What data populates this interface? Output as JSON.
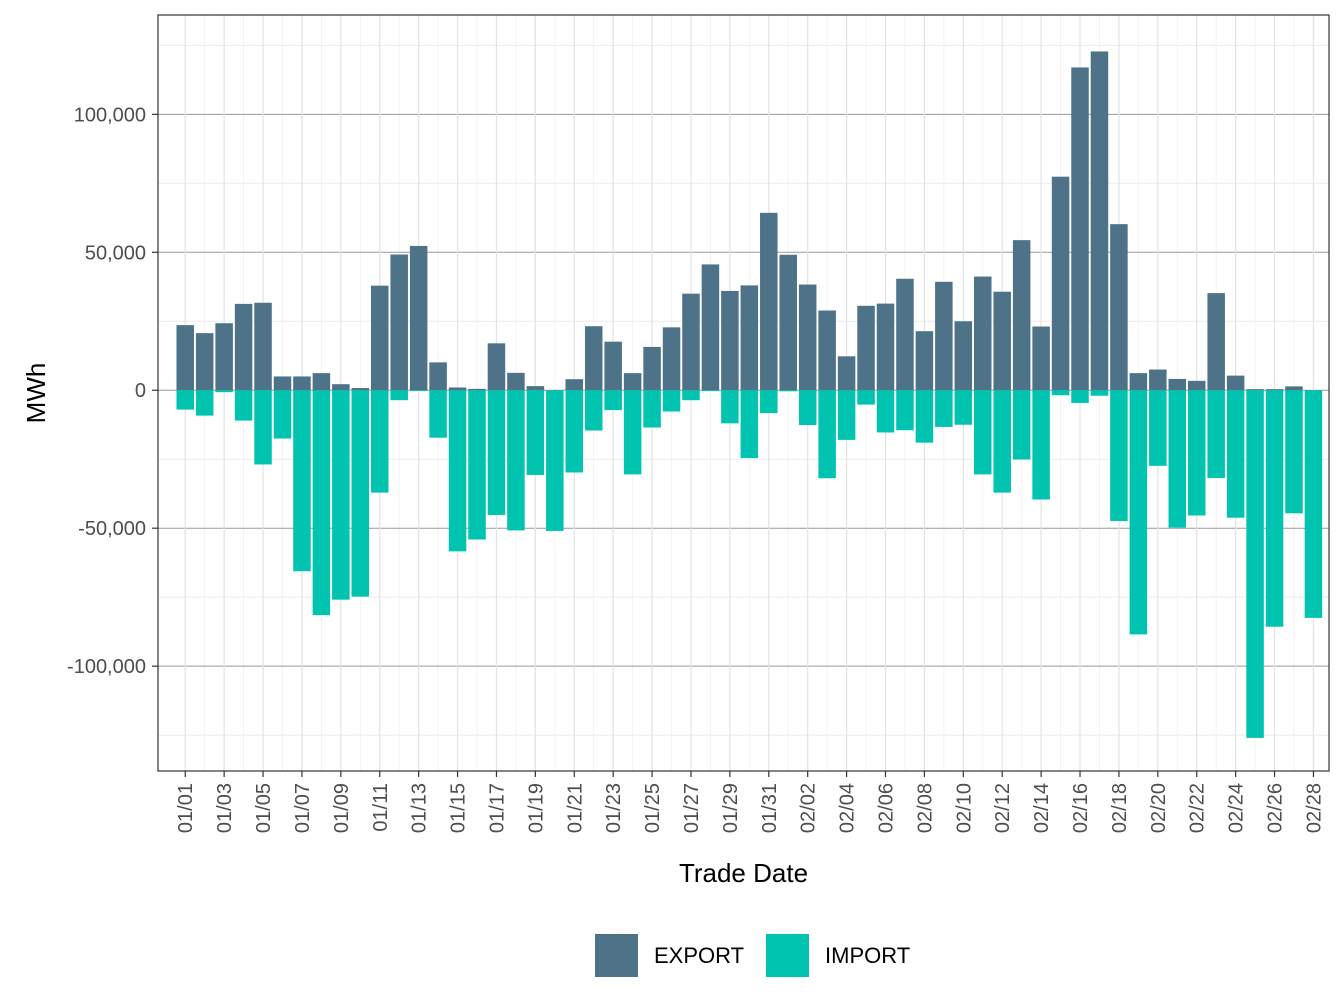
{
  "chart_data": {
    "type": "bar",
    "xlabel": "Trade Date",
    "ylabel": "MWh",
    "ylim": [
      -138000,
      136000
    ],
    "y_ticks": [
      100000,
      50000,
      0,
      -50000,
      -100000
    ],
    "y_tick_labels": [
      "100,000",
      "50,000",
      "0",
      "-50,000",
      "-100,000"
    ],
    "x_tick_labels": [
      "01/01",
      "01/03",
      "01/05",
      "01/07",
      "01/09",
      "01/11",
      "01/13",
      "01/15",
      "01/17",
      "01/19",
      "01/21",
      "01/23",
      "01/25",
      "01/27",
      "01/29",
      "01/31",
      "02/02",
      "02/04",
      "02/06",
      "02/08",
      "02/10",
      "02/12",
      "02/14",
      "02/16",
      "02/18",
      "02/20",
      "02/22",
      "02/24",
      "02/26",
      "02/28"
    ],
    "grid": true,
    "legend_position": "bottom",
    "categories": [
      "01/01",
      "01/02",
      "01/03",
      "01/04",
      "01/05",
      "01/06",
      "01/07",
      "01/08",
      "01/09",
      "01/10",
      "01/11",
      "01/12",
      "01/13",
      "01/14",
      "01/15",
      "01/16",
      "01/17",
      "01/18",
      "01/19",
      "01/20",
      "01/21",
      "01/22",
      "01/23",
      "01/24",
      "01/25",
      "01/26",
      "01/27",
      "01/28",
      "01/29",
      "01/30",
      "01/31",
      "02/01",
      "02/02",
      "02/03",
      "02/04",
      "02/05",
      "02/06",
      "02/07",
      "02/08",
      "02/09",
      "02/10",
      "02/11",
      "02/12",
      "02/13",
      "02/14",
      "02/15",
      "02/16",
      "02/17",
      "02/18",
      "02/19",
      "02/20",
      "02/21",
      "02/22",
      "02/23",
      "02/24",
      "02/25",
      "02/26",
      "02/27",
      "02/28"
    ],
    "series": [
      {
        "name": "EXPORT",
        "color": "#4e7389",
        "values": [
          23600,
          20700,
          24300,
          31300,
          31700,
          5000,
          5000,
          6200,
          2200,
          800,
          37900,
          49200,
          52300,
          10100,
          1000,
          500,
          17000,
          6300,
          1500,
          0,
          4000,
          23200,
          17600,
          6200,
          15700,
          22800,
          35000,
          45600,
          36000,
          38000,
          64300,
          49100,
          38300,
          28900,
          12300,
          30600,
          31400,
          40400,
          21400,
          39300,
          25000,
          41200,
          35700,
          54400,
          23100,
          77400,
          117000,
          122800,
          60200,
          6200,
          7500,
          4100,
          3400,
          35200,
          5300,
          400,
          400,
          1400,
          0
        ]
      },
      {
        "name": "IMPORT",
        "color": "#00c4b0",
        "values": [
          -7000,
          -9200,
          -700,
          -11000,
          -26900,
          -17500,
          -65600,
          -81500,
          -75900,
          -74800,
          -37100,
          -3600,
          -300,
          -17200,
          -58400,
          -54100,
          -45200,
          -50800,
          -30700,
          -51000,
          -29800,
          -14600,
          -7200,
          -30500,
          -13500,
          -7700,
          -3600,
          -300,
          -12000,
          -24600,
          -8300,
          -400,
          -12600,
          -31900,
          -18000,
          -5200,
          -15300,
          -14500,
          -19000,
          -13300,
          -12500,
          -30500,
          -37100,
          -25100,
          -39600,
          -1800,
          -4600,
          -2000,
          -47400,
          -88500,
          -27400,
          -49800,
          -45400,
          -31800,
          -46200,
          -126000,
          -85700,
          -44600,
          -82500
        ]
      }
    ]
  }
}
